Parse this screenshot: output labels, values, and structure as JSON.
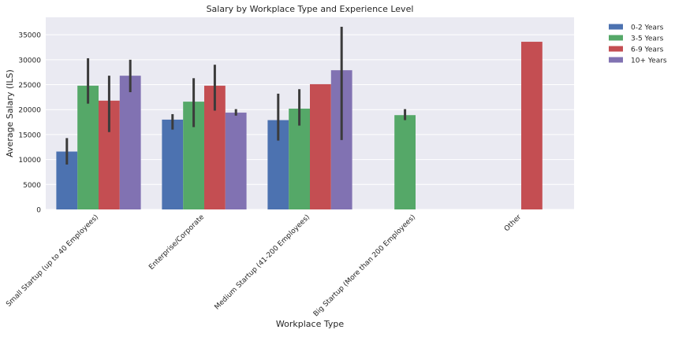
{
  "chart_data": {
    "type": "bar",
    "title": "Salary by Workplace Type and Experience Level",
    "xlabel": "Workplace Type",
    "ylabel": "Average Salary (ILS)",
    "ylim": [
      0,
      38500
    ],
    "yticks": [
      0,
      5000,
      10000,
      15000,
      20000,
      25000,
      30000,
      35000
    ],
    "grid": true,
    "legend_position": "outside-top-right",
    "categories": [
      "Small Startup (up to 40 Employees)",
      "Enterprise/Corporate",
      "Medium Startup (41-200 Employees)",
      "Big Startup (More than 200 Employees)",
      "Other"
    ],
    "series": [
      {
        "name": "0-2 Years",
        "color": "#4c72b0",
        "values": [
          11600,
          18000,
          17900,
          null,
          null
        ],
        "error_low": [
          9000,
          16000,
          13800,
          null,
          null
        ],
        "error_high": [
          14300,
          19100,
          23200,
          null,
          null
        ]
      },
      {
        "name": "3-5 Years",
        "color": "#55a868",
        "values": [
          24800,
          21600,
          20200,
          18900,
          null
        ],
        "error_low": [
          21200,
          16500,
          16800,
          17900,
          null
        ],
        "error_high": [
          30300,
          26300,
          24100,
          20100,
          null
        ]
      },
      {
        "name": "6-9 Years",
        "color": "#c44e52",
        "values": [
          21800,
          24800,
          25100,
          null,
          33600
        ],
        "error_low": [
          15500,
          19800,
          null,
          null,
          null
        ],
        "error_high": [
          26800,
          29000,
          null,
          null,
          null
        ]
      },
      {
        "name": "10+ Years",
        "color": "#8172b2",
        "values": [
          26800,
          19400,
          27900,
          null,
          null
        ],
        "error_low": [
          23500,
          18800,
          13900,
          null,
          null
        ],
        "error_high": [
          30000,
          20100,
          36600,
          null,
          null
        ]
      }
    ]
  }
}
